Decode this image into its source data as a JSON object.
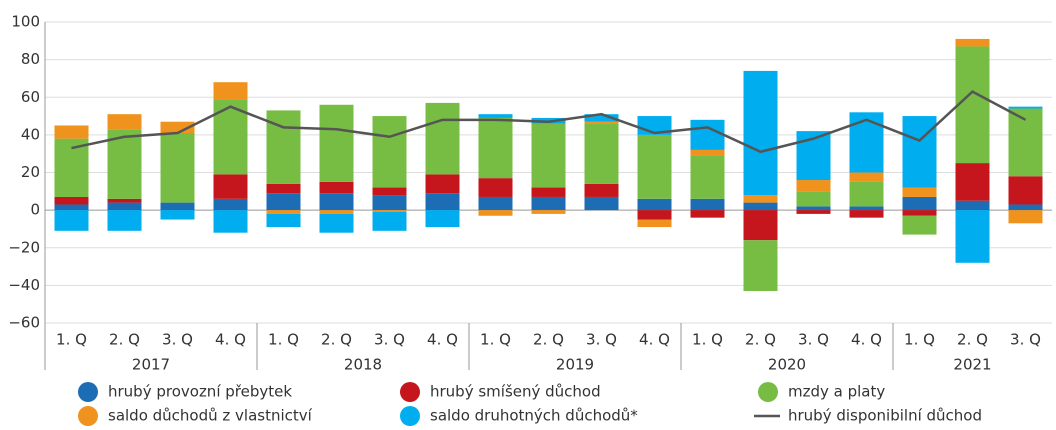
{
  "chart_data": {
    "type": "stacked-bar-line",
    "categories": [
      "1. Q",
      "2. Q",
      "3. Q",
      "4. Q",
      "1. Q",
      "2. Q",
      "3. Q",
      "4. Q",
      "1. Q",
      "2. Q",
      "3. Q",
      "4. Q",
      "1. Q",
      "2. Q",
      "3. Q",
      "4. Q",
      "1. Q",
      "2. Q",
      "3. Q"
    ],
    "groups": [
      {
        "label": "2017",
        "size": 4
      },
      {
        "label": "2018",
        "size": 4
      },
      {
        "label": "2019",
        "size": 4
      },
      {
        "label": "2020",
        "size": 4
      },
      {
        "label": "2021",
        "size": 3
      }
    ],
    "series": [
      {
        "name": "hrubý provozní přebytek",
        "color": "#1d6db4",
        "values": [
          3,
          4,
          4,
          6,
          9,
          9,
          8,
          9,
          7,
          7,
          7,
          6,
          6,
          4,
          2,
          2,
          7,
          5,
          3
        ]
      },
      {
        "name": "hrubý smíšený důchod",
        "color": "#c4161c",
        "values": [
          4,
          2,
          0,
          13,
          5,
          6,
          4,
          10,
          10,
          5,
          7,
          -5,
          -4,
          -16,
          -2,
          -4,
          -3,
          20,
          15
        ]
      },
      {
        "name": "mzdy a platy",
        "color": "#77bc43",
        "values": [
          31,
          37,
          37,
          40,
          39,
          41,
          38,
          38,
          32,
          34,
          32,
          34,
          23,
          -27,
          8,
          13,
          -10,
          62,
          36
        ]
      },
      {
        "name": "saldo důchodů z vlastnictví",
        "color": "#f0921e",
        "values": [
          7,
          8,
          6,
          9,
          -2,
          -2,
          -1,
          0,
          -3,
          -2,
          1,
          -4,
          3,
          4,
          6,
          5,
          5,
          4,
          -7
        ]
      },
      {
        "name": "saldo druhotných důchodů*",
        "color": "#00aeef",
        "values": [
          -11,
          -11,
          -5,
          -12,
          -7,
          -10,
          -10,
          -9,
          2,
          3,
          4,
          10,
          16,
          66,
          26,
          32,
          38,
          -28,
          1
        ]
      }
    ],
    "line": {
      "name": "hrubý disponibilní důchod",
      "color": "#555555",
      "values": [
        33,
        39,
        41,
        55,
        44,
        43,
        39,
        48,
        48,
        47,
        51,
        41,
        44,
        31,
        38,
        48,
        37,
        63,
        48
      ]
    },
    "ylim": [
      -60,
      100
    ],
    "yticks": [
      {
        "value": -60,
        "label": "−60"
      },
      {
        "value": -40,
        "label": "−40"
      },
      {
        "value": -20,
        "label": "−20"
      },
      0,
      20,
      40,
      60,
      80,
      100
    ],
    "grid": true
  }
}
